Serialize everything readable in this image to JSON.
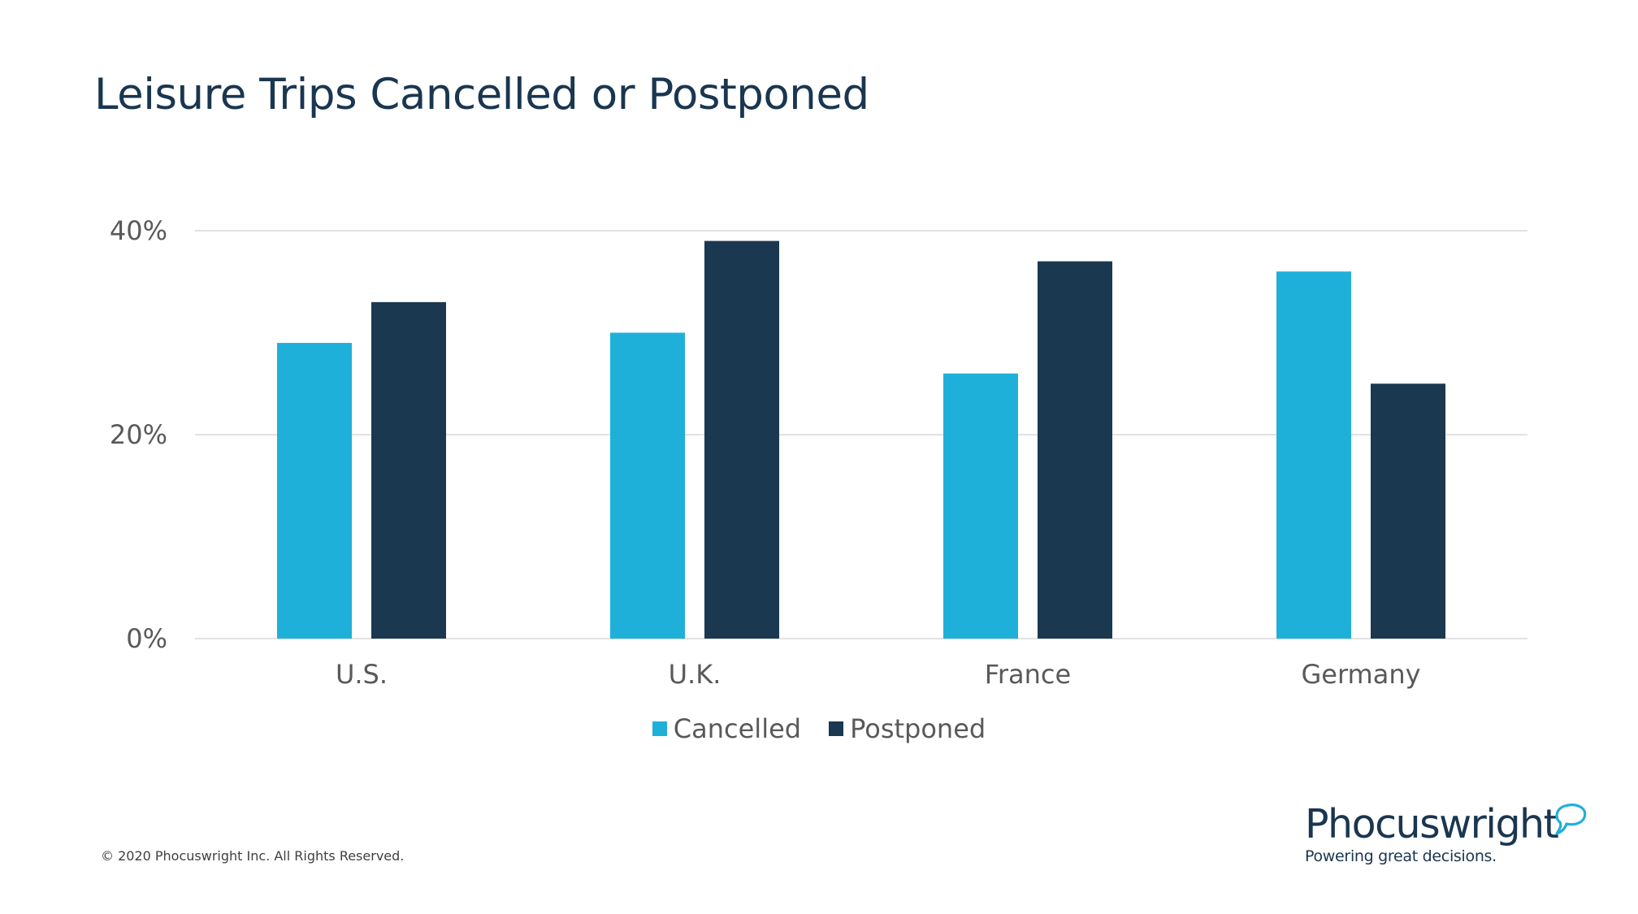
{
  "title": "Leisure Trips Cancelled or Postponed",
  "chart_data": {
    "type": "bar",
    "categories": [
      "U.S.",
      "U.K.",
      "France",
      "Germany"
    ],
    "series": [
      {
        "name": "Cancelled",
        "values": [
          29,
          30,
          26,
          36
        ],
        "color": "#1fb0da"
      },
      {
        "name": "Postponed",
        "values": [
          33,
          39,
          37,
          25
        ],
        "color": "#1a3850"
      }
    ],
    "ylim": [
      0,
      40
    ],
    "y_ticks": [
      0,
      20,
      40
    ],
    "y_tick_labels": [
      "0%",
      "20%",
      "40%"
    ],
    "grid": true,
    "legend_position": "bottom-center"
  },
  "footer": {
    "copyright": "© 2020  Phocuswright Inc. All Rights Reserved."
  },
  "brand": {
    "name": "Phocuswright",
    "tagline": "Powering great decisions.",
    "color": "#1a3650",
    "accent": "#1fb0da"
  }
}
